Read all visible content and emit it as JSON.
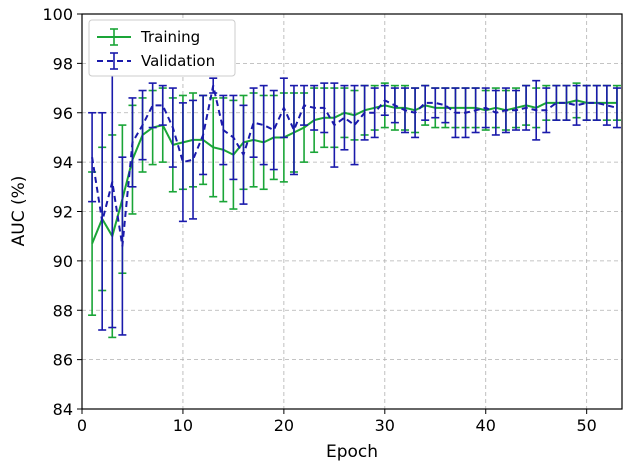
{
  "chart_data": {
    "type": "line",
    "xlabel": "Epoch",
    "ylabel": "AUC (%)",
    "xlim": [
      0,
      53.5
    ],
    "ylim": [
      84,
      100
    ],
    "xticks": [
      0,
      10,
      20,
      30,
      40,
      50
    ],
    "yticks": [
      84,
      86,
      88,
      90,
      92,
      94,
      96,
      98,
      100
    ],
    "grid": true,
    "legend_position": "top-left",
    "x": [
      1,
      2,
      3,
      4,
      5,
      6,
      7,
      8,
      9,
      10,
      11,
      12,
      13,
      14,
      15,
      16,
      17,
      18,
      19,
      20,
      21,
      22,
      23,
      24,
      25,
      26,
      27,
      28,
      29,
      30,
      31,
      32,
      33,
      34,
      35,
      36,
      37,
      38,
      39,
      40,
      41,
      42,
      43,
      44,
      45,
      46,
      47,
      48,
      49,
      50,
      51,
      52,
      53
    ],
    "series": [
      {
        "name": "Training",
        "color": "#1aa537",
        "style": "solid",
        "values": [
          90.7,
          91.7,
          91.0,
          92.5,
          94.1,
          95.1,
          95.4,
          95.5,
          94.7,
          94.8,
          94.9,
          94.9,
          94.6,
          94.5,
          94.3,
          94.8,
          94.9,
          94.8,
          95.0,
          95.0,
          95.2,
          95.4,
          95.7,
          95.8,
          95.8,
          96.0,
          95.9,
          96.1,
          96.2,
          96.3,
          96.2,
          96.2,
          96.1,
          96.3,
          96.2,
          96.2,
          96.2,
          96.2,
          96.2,
          96.1,
          96.2,
          96.1,
          96.2,
          96.3,
          96.2,
          96.4,
          96.4,
          96.4,
          96.5,
          96.4,
          96.4,
          96.4,
          96.4
        ],
        "errors": [
          2.9,
          2.9,
          4.1,
          3.0,
          2.2,
          1.5,
          1.5,
          1.5,
          1.9,
          1.9,
          1.9,
          1.8,
          2.0,
          2.1,
          2.2,
          1.9,
          1.9,
          1.9,
          1.7,
          1.8,
          1.6,
          1.4,
          1.3,
          1.2,
          1.2,
          1.0,
          1.0,
          1.0,
          0.9,
          0.9,
          0.9,
          0.9,
          0.9,
          0.8,
          0.8,
          0.8,
          0.8,
          0.8,
          0.8,
          0.8,
          0.8,
          0.8,
          0.8,
          0.8,
          0.8,
          0.7,
          0.7,
          0.7,
          0.7,
          0.7,
          0.7,
          0.7,
          0.7
        ]
      },
      {
        "name": "Validation",
        "color": "#1a1aab",
        "style": "dashed",
        "values": [
          94.2,
          91.6,
          93.2,
          90.6,
          94.8,
          95.5,
          96.3,
          96.3,
          95.4,
          94.0,
          94.1,
          95.1,
          97.1,
          95.3,
          95.0,
          94.3,
          95.6,
          95.5,
          95.3,
          96.2,
          95.3,
          96.3,
          96.2,
          96.2,
          95.5,
          95.8,
          95.5,
          96.0,
          96.0,
          96.5,
          96.3,
          96.1,
          96.0,
          96.4,
          96.4,
          96.3,
          96.0,
          96.0,
          96.1,
          96.2,
          96.0,
          96.1,
          96.1,
          96.2,
          96.1,
          96.1,
          96.4,
          96.4,
          96.3,
          96.4,
          96.4,
          96.3,
          96.2
        ],
        "errors": [
          1.8,
          4.4,
          5.9,
          3.6,
          1.8,
          1.4,
          0.9,
          0.8,
          1.6,
          2.4,
          2.4,
          1.6,
          0.3,
          1.4,
          1.7,
          2.0,
          1.4,
          1.6,
          1.6,
          1.2,
          1.8,
          0.8,
          0.9,
          1.0,
          1.7,
          1.3,
          1.6,
          1.1,
          1.0,
          0.6,
          0.7,
          0.9,
          1.0,
          0.7,
          0.6,
          0.7,
          1.0,
          1.0,
          0.9,
          0.8,
          0.9,
          0.9,
          0.8,
          0.9,
          1.2,
          0.9,
          0.7,
          0.7,
          0.8,
          0.7,
          0.7,
          0.8,
          0.8
        ]
      }
    ]
  }
}
